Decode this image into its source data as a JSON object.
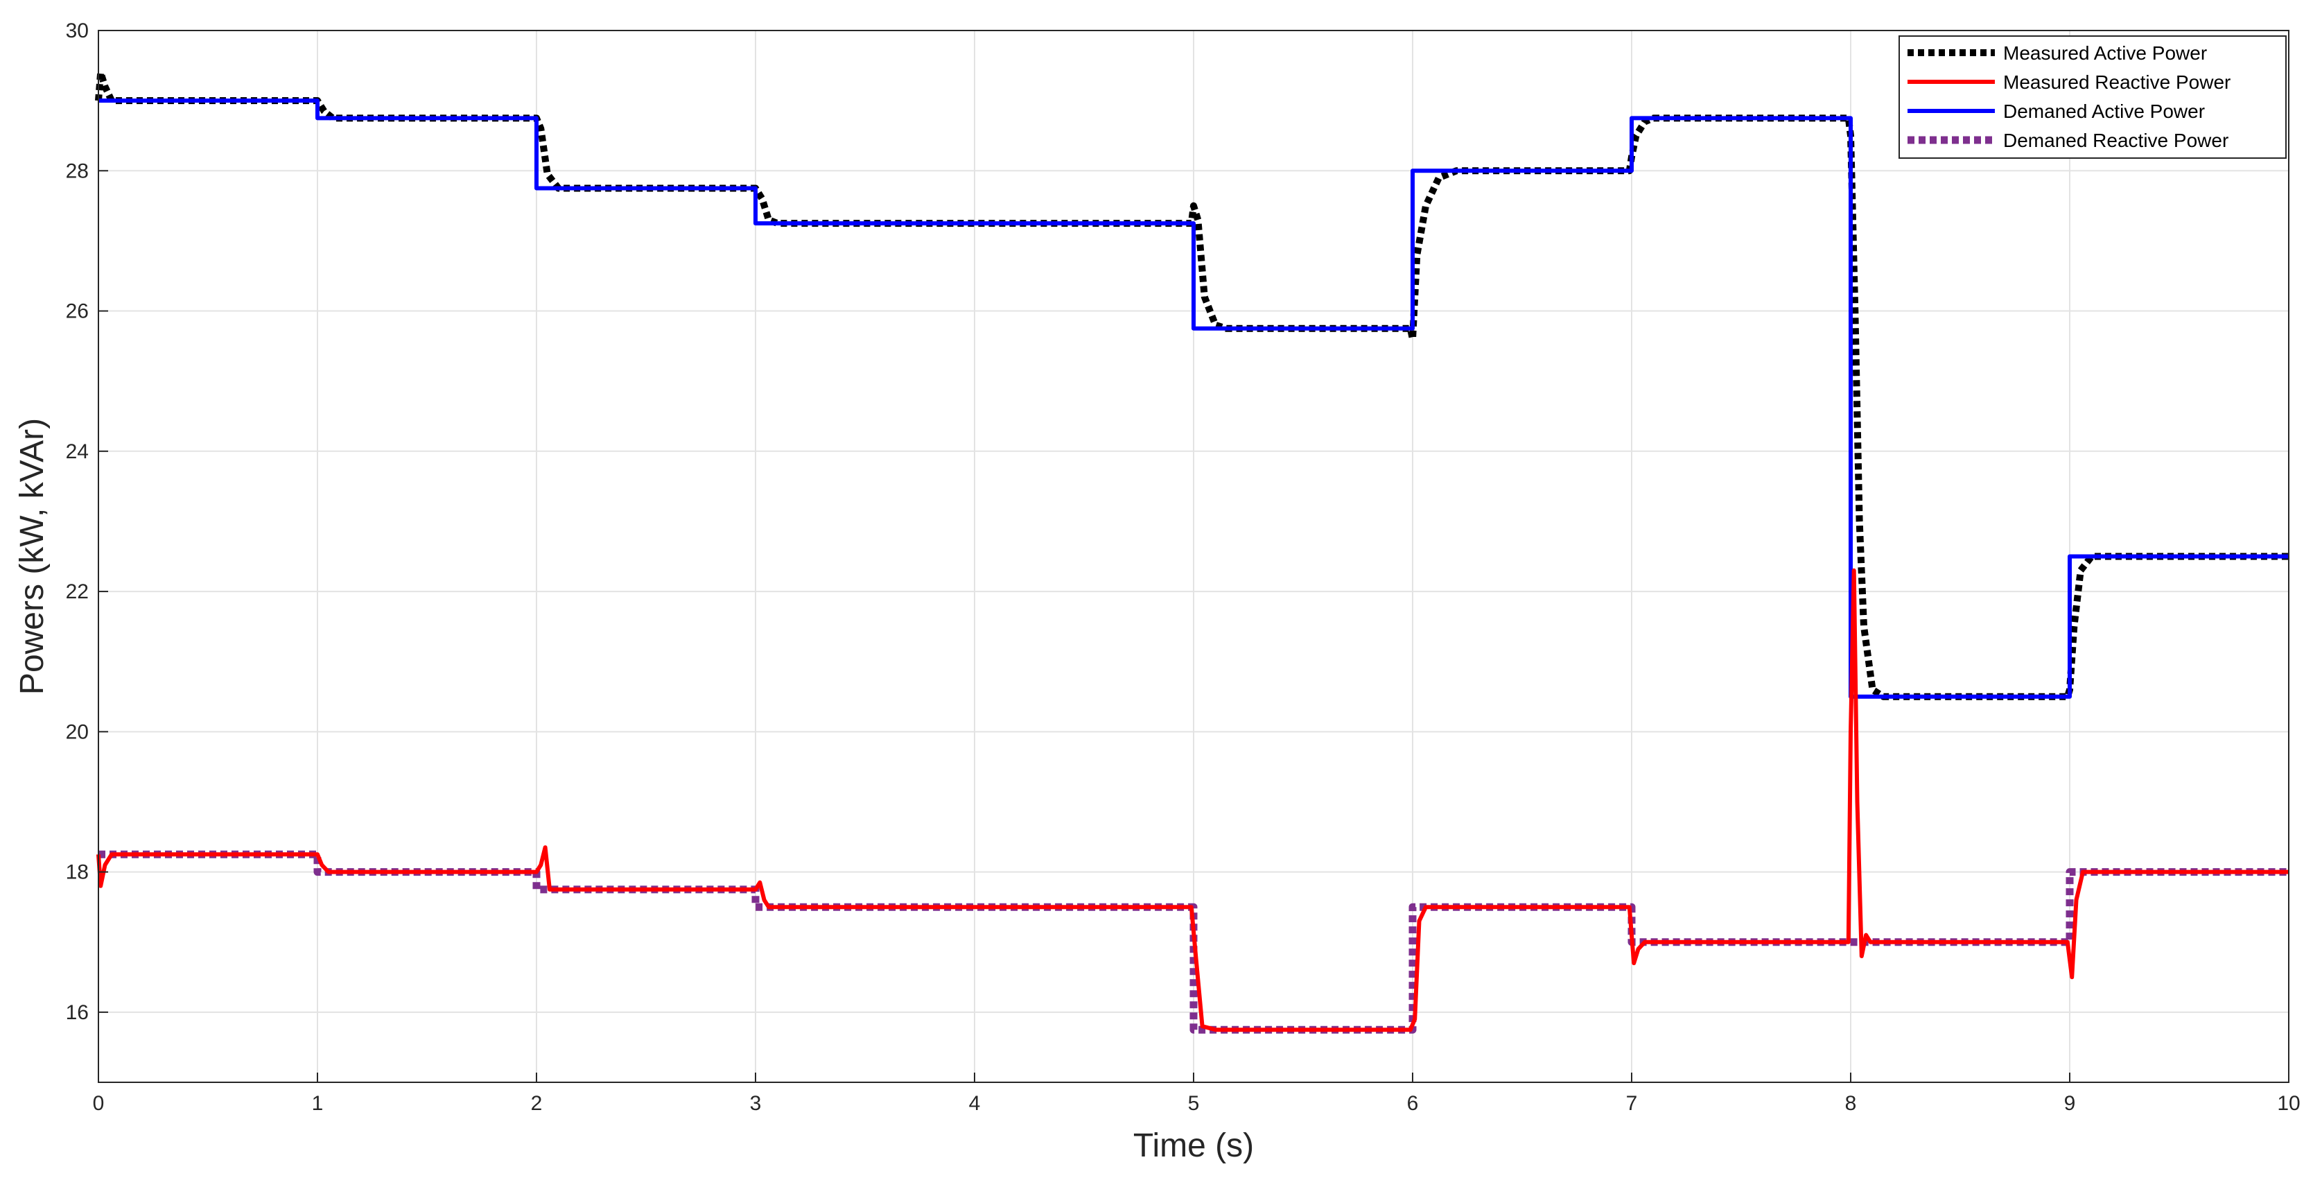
{
  "chart_data": {
    "type": "line",
    "title": "",
    "xlabel": "Time (s)",
    "ylabel": "Powers (kW, kVAr)",
    "xlim": [
      0,
      10
    ],
    "ylim": [
      15,
      30
    ],
    "xticks": [
      "0",
      "1",
      "2",
      "3",
      "4",
      "5",
      "6",
      "7",
      "8",
      "9",
      "10"
    ],
    "yticks": [
      "16",
      "18",
      "20",
      "22",
      "24",
      "26",
      "28",
      "30"
    ],
    "grid": true,
    "legend_position": "top-right",
    "series": [
      {
        "name": "Measured Active Power",
        "color": "#000000",
        "style": "dotted",
        "x": [
          0,
          0.01,
          0.03,
          0.06,
          1.0,
          1.03,
          1.07,
          2.0,
          2.02,
          2.05,
          2.1,
          3.0,
          3.03,
          3.06,
          3.1,
          4.99,
          5.0,
          5.02,
          5.05,
          5.1,
          5.15,
          5.99,
          6.0,
          6.02,
          6.06,
          6.12,
          6.2,
          6.99,
          7.0,
          7.02,
          7.06,
          7.1,
          7.99,
          8.0,
          8.02,
          8.04,
          8.06,
          8.1,
          8.15,
          8.99,
          9.0,
          9.02,
          9.05,
          9.1,
          10.0
        ],
        "y": [
          29.0,
          29.4,
          29.2,
          29.0,
          29.0,
          28.85,
          28.75,
          28.75,
          28.6,
          27.95,
          27.75,
          27.75,
          27.6,
          27.3,
          27.25,
          27.25,
          27.5,
          27.3,
          26.2,
          25.8,
          25.75,
          25.75,
          25.6,
          26.8,
          27.5,
          27.9,
          28.0,
          28.0,
          28.2,
          28.5,
          28.7,
          28.75,
          28.75,
          28.5,
          26.0,
          23.0,
          21.5,
          20.6,
          20.5,
          20.5,
          20.6,
          21.5,
          22.3,
          22.5,
          22.5
        ]
      },
      {
        "name": "Measured Reactive Power",
        "color": "#ff0000",
        "style": "solid",
        "x": [
          0,
          0.01,
          0.03,
          0.06,
          1.0,
          1.02,
          1.05,
          2.0,
          2.02,
          2.04,
          2.06,
          3.0,
          3.02,
          3.04,
          3.06,
          4.99,
          5.01,
          5.04,
          5.1,
          5.99,
          6.01,
          6.03,
          6.06,
          6.1,
          6.99,
          7.01,
          7.03,
          7.06,
          7.1,
          7.99,
          8.0,
          8.015,
          8.03,
          8.05,
          8.07,
          8.09,
          8.12,
          8.99,
          9.01,
          9.03,
          9.06,
          9.1,
          10.0
        ],
        "y": [
          18.25,
          17.8,
          18.1,
          18.25,
          18.25,
          18.1,
          18.0,
          18.0,
          18.1,
          18.35,
          17.75,
          17.75,
          17.85,
          17.6,
          17.5,
          17.5,
          16.8,
          15.8,
          15.75,
          15.75,
          15.9,
          17.3,
          17.5,
          17.5,
          17.5,
          16.7,
          16.9,
          17.0,
          17.0,
          17.0,
          20.0,
          22.3,
          19.0,
          16.8,
          17.1,
          17.0,
          17.0,
          17.0,
          16.5,
          17.6,
          18.0,
          18.0,
          18.0
        ]
      },
      {
        "name": "Demaned Active Power",
        "color": "#0000ff",
        "style": "solid",
        "x": [
          0,
          1,
          1,
          2,
          2,
          3,
          3,
          5,
          5,
          6,
          6,
          7,
          7,
          8,
          8,
          9,
          9,
          10
        ],
        "y": [
          29.0,
          29.0,
          28.75,
          28.75,
          27.75,
          27.75,
          27.25,
          27.25,
          25.75,
          25.75,
          28.0,
          28.0,
          28.75,
          28.75,
          20.5,
          20.5,
          22.5,
          22.5
        ]
      },
      {
        "name": "Demaned Reactive Power",
        "color": "#7e2f8e",
        "style": "dotted",
        "x": [
          0,
          1,
          1,
          2,
          2,
          3,
          3,
          5,
          5,
          6,
          6,
          7,
          7,
          8,
          8,
          9,
          9,
          10
        ],
        "y": [
          18.25,
          18.25,
          18.0,
          18.0,
          17.75,
          17.75,
          17.5,
          17.5,
          15.75,
          15.75,
          17.5,
          17.5,
          17.0,
          17.0,
          17.0,
          17.0,
          18.0,
          18.0
        ]
      }
    ]
  }
}
